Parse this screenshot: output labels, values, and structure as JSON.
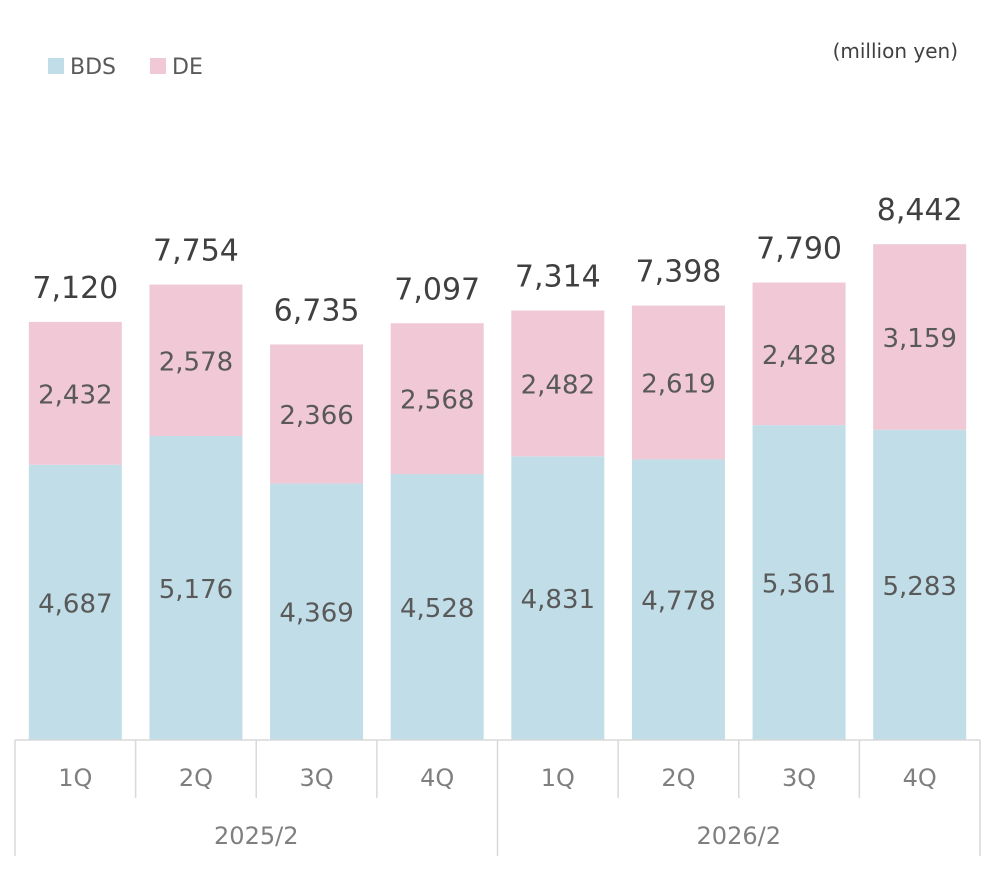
{
  "chart_data": {
    "type": "bar",
    "stacked": true,
    "unit": "(million yen)",
    "categories": [
      "1Q",
      "2Q",
      "3Q",
      "4Q",
      "1Q",
      "2Q",
      "3Q",
      "4Q"
    ],
    "groups": [
      {
        "label": "2025/2",
        "count": 4
      },
      {
        "label": "2026/2",
        "count": 4
      }
    ],
    "series": [
      {
        "name": "BDS",
        "color": "#c1dde7",
        "values": [
          4687,
          5176,
          4369,
          4528,
          4831,
          4778,
          5361,
          5283
        ]
      },
      {
        "name": "DE",
        "color": "#f0c8d6",
        "values": [
          2432,
          2578,
          2366,
          2568,
          2482,
          2619,
          2428,
          3159
        ]
      }
    ],
    "totals": [
      7120,
      7754,
      6735,
      7097,
      7314,
      7398,
      7790,
      8442
    ],
    "legend_position": "top-left",
    "grid": false
  }
}
